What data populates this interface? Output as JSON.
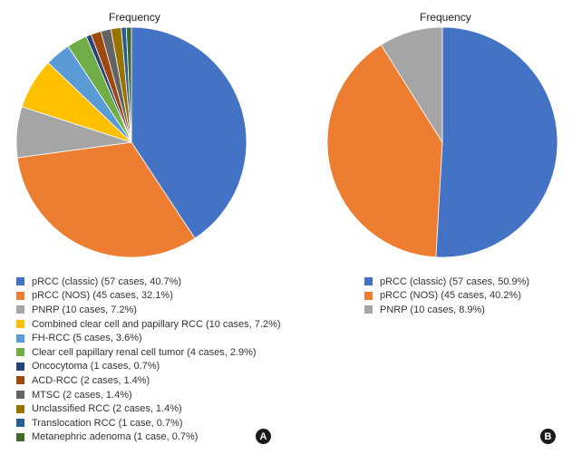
{
  "chart_data": [
    {
      "type": "pie",
      "panel_label": "A",
      "title": "Frequency",
      "slices": [
        {
          "label": "pRCC (classic) (57 cases, 40.7%)",
          "value": 57,
          "color": "#4472c4"
        },
        {
          "label": "pRCC (NOS) (45 cases, 32.1%)",
          "value": 45,
          "color": "#ed7d31"
        },
        {
          "label": "PNRP (10 cases, 7.2%)",
          "value": 10,
          "color": "#a5a5a5"
        },
        {
          "label": "Combined clear cell and papillary RCC (10 cases, 7.2%)",
          "value": 10,
          "color": "#ffc000"
        },
        {
          "label": "FH-RCC (5 cases, 3.6%)",
          "value": 5,
          "color": "#5b9bd5"
        },
        {
          "label": "Clear cell papillary renal cell tumor (4 cases, 2.9%)",
          "value": 4,
          "color": "#70ad47"
        },
        {
          "label": "Oncocytoma (1 cases, 0.7%)",
          "value": 1,
          "color": "#264478"
        },
        {
          "label": "ACD-RCC (2 cases, 1.4%)",
          "value": 2,
          "color": "#9e480e"
        },
        {
          "label": "MTSC (2 cases, 1.4%)",
          "value": 2,
          "color": "#636363"
        },
        {
          "label": "Unclassified RCC (2 cases, 1.4%)",
          "value": 2,
          "color": "#997300"
        },
        {
          "label": "Translocation RCC (1 case, 0.7%)",
          "value": 1,
          "color": "#255e91"
        },
        {
          "label": "Metanephric adenoma (1 case, 0.7%)",
          "value": 1,
          "color": "#43682b"
        }
      ]
    },
    {
      "type": "pie",
      "panel_label": "B",
      "title": "Frequency",
      "slices": [
        {
          "label": "pRCC (classic) (57 cases, 50.9%)",
          "value": 57,
          "color": "#4472c4"
        },
        {
          "label": "pRCC (NOS) (45 cases, 40.2%)",
          "value": 45,
          "color": "#ed7d31"
        },
        {
          "label": "PNRP (10 cases, 8.9%)",
          "value": 10,
          "color": "#a5a5a5"
        }
      ]
    }
  ]
}
